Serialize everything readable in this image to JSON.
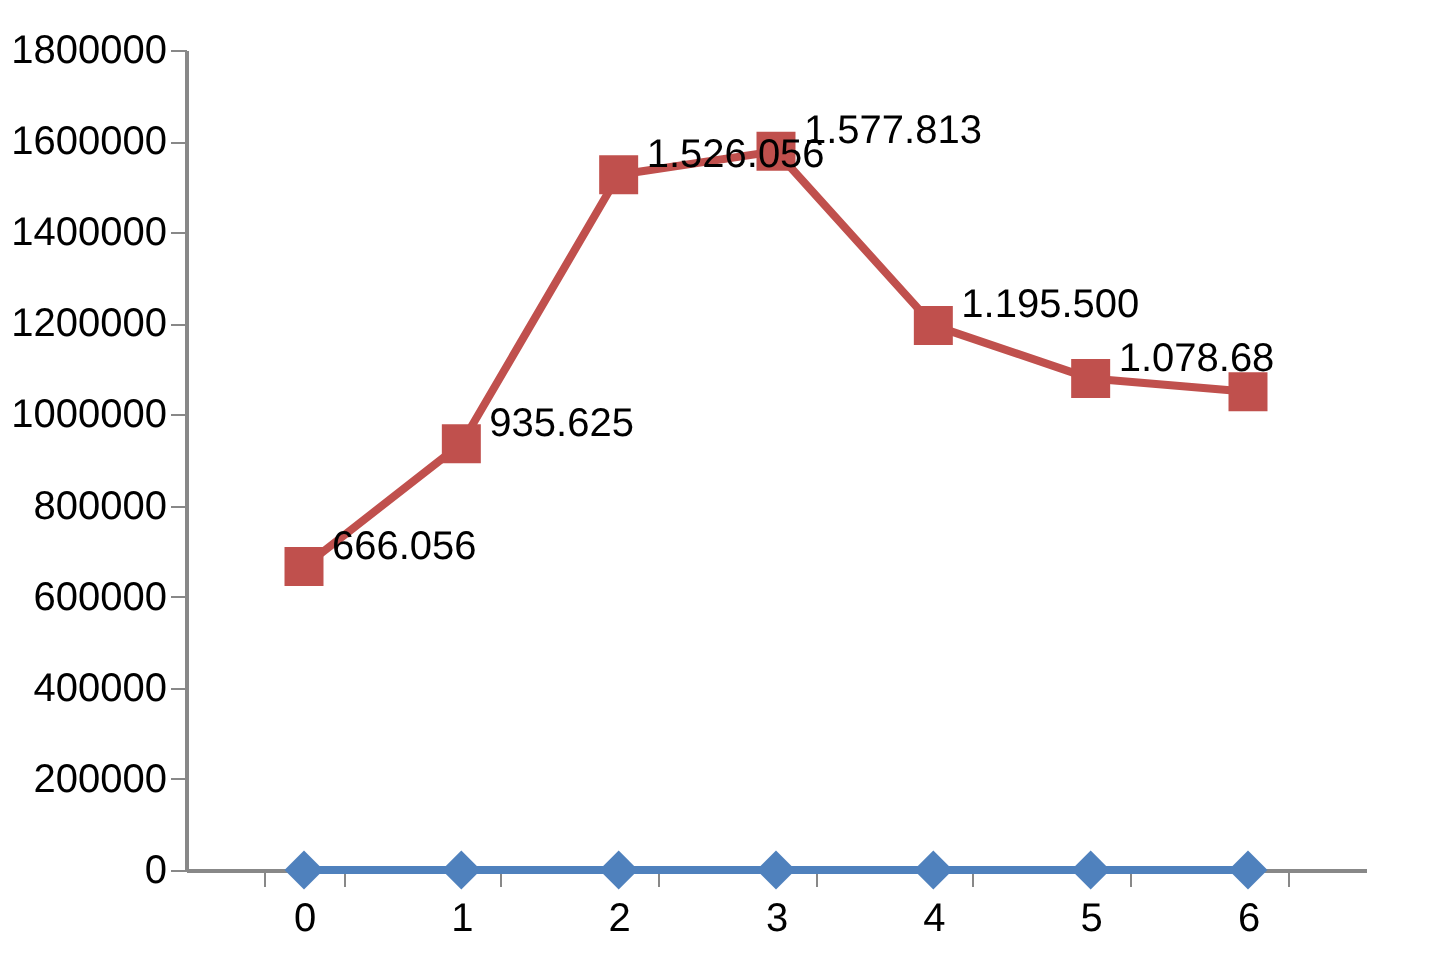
{
  "chart_data": {
    "type": "line",
    "categories": [
      "0",
      "1",
      "2",
      "3",
      "4",
      "5",
      "6"
    ],
    "series": [
      {
        "color": "#4f81bd",
        "marker": "diamond",
        "values": [
          0,
          0,
          0,
          0,
          0,
          0,
          0
        ]
      },
      {
        "color": "#c0504d",
        "marker": "square",
        "values": [
          666056,
          935625,
          1526056,
          1577813,
          1195500,
          1078680,
          1050000
        ],
        "value_labels": [
          "666.056",
          "935.625",
          "1.526.056",
          "1.577.813",
          "1.195.500",
          "1.078.68",
          null
        ]
      }
    ],
    "ylim": [
      0,
      1800000
    ],
    "yticks": [
      0,
      200000,
      400000,
      600000,
      800000,
      1000000,
      1200000,
      1400000,
      1600000,
      1800000
    ],
    "grid": false,
    "line_style": "solid"
  }
}
